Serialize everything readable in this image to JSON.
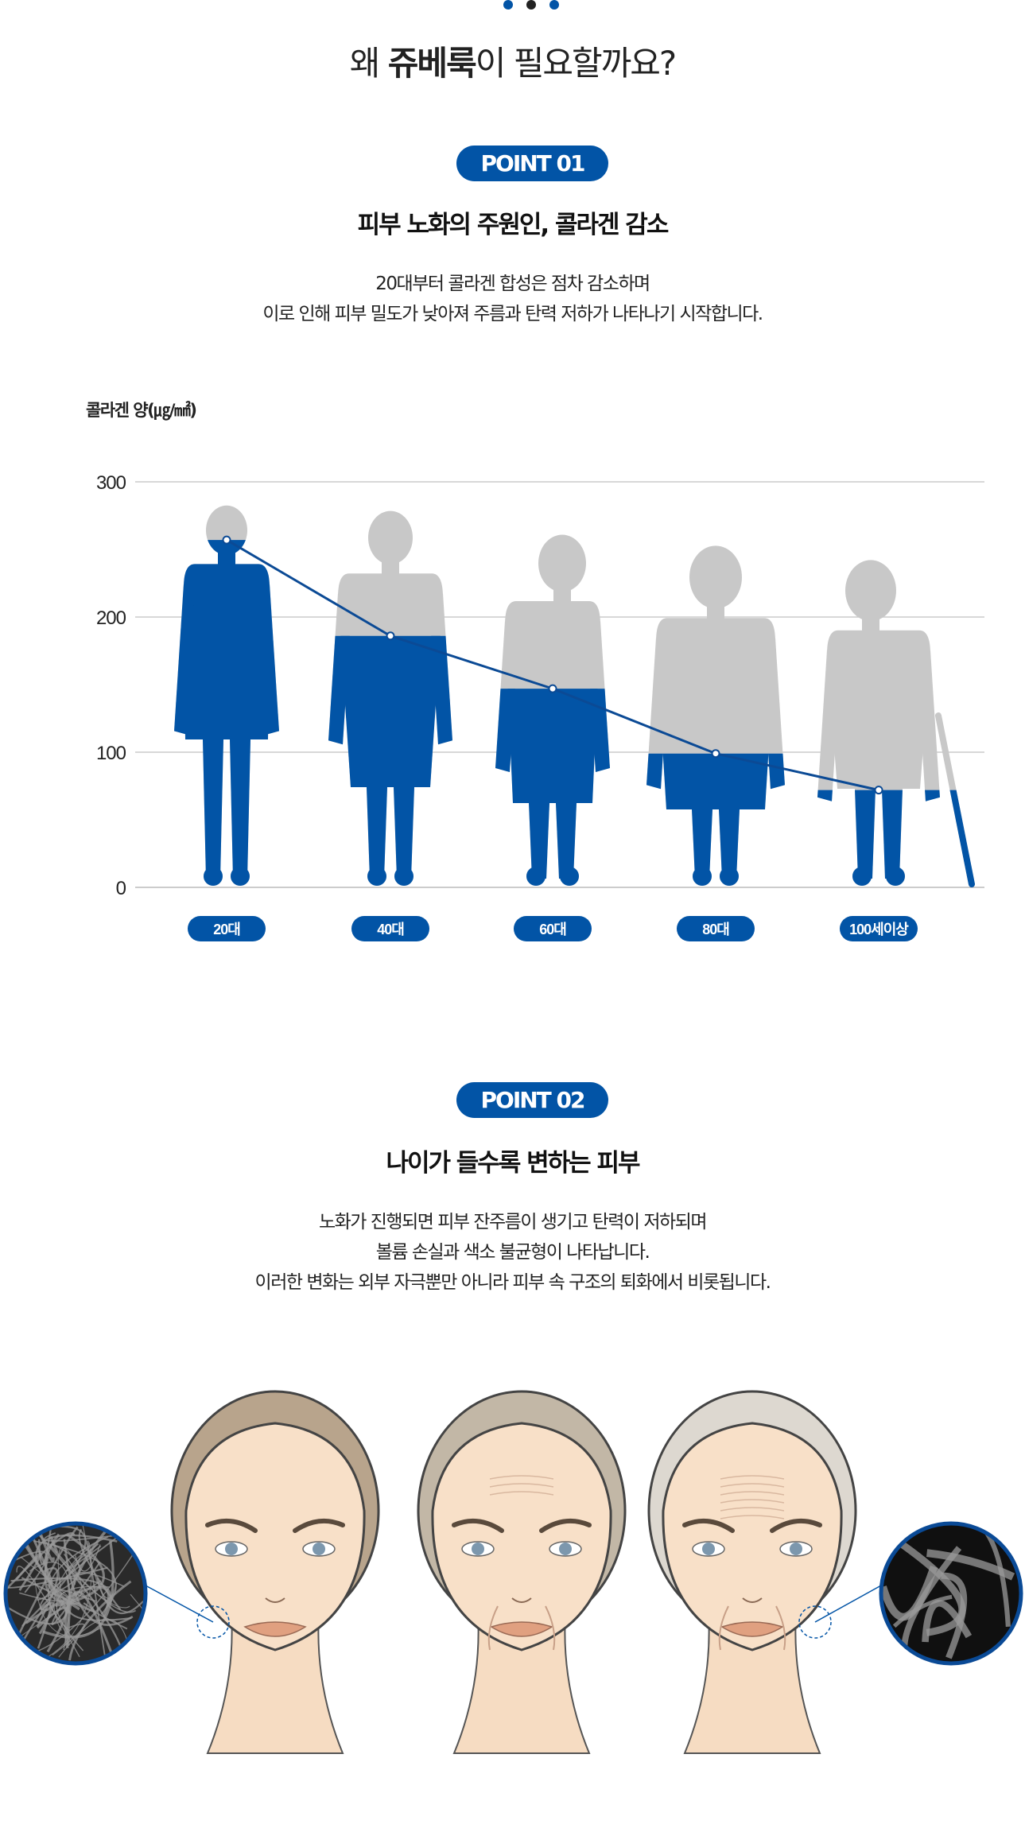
{
  "colors": {
    "accent": "#0254a6",
    "dark_dot": "#222222",
    "silhouette_gray": "#c8c8c8",
    "grid": "#cccccc"
  },
  "header": {
    "title_prefix": "왜 ",
    "title_brand": "쥬베룩",
    "title_suffix": "이 필요할까요?"
  },
  "point1": {
    "badge": "POINT 01",
    "heading": "피부 노화의 주원인, 콜라겐 감소",
    "desc": [
      "20대부터 콜라겐 합성은 점차 감소하며",
      "이로 인해 피부 밀도가 낮아져 주름과 탄력 저하가 나타나기 시작합니다."
    ]
  },
  "chart_data": {
    "type": "line",
    "ylabel": "콜라겐 양(㎍/㎟)",
    "categories": [
      "20대",
      "40대",
      "60대",
      "80대",
      "100세이상"
    ],
    "values": [
      257,
      186,
      147,
      99,
      72
    ],
    "ylim": [
      0,
      300
    ],
    "yticks": [
      "0",
      "100",
      "200",
      "300"
    ],
    "grid": true,
    "style": "line over human silhouettes filled blue up to value"
  },
  "point2": {
    "badge": "POINT 02",
    "heading": "나이가 들수록 변하는 피부",
    "desc": [
      "노화가 진행되면 피부 잔주름이 생기고 탄력이 저하되며",
      "볼륨 손실과 색소 불균형이 나타납니다.",
      "이러한 변화는 외부 자극뿐만 아니라 피부 속 구조의 퇴화에서 비롯됩니다."
    ]
  }
}
